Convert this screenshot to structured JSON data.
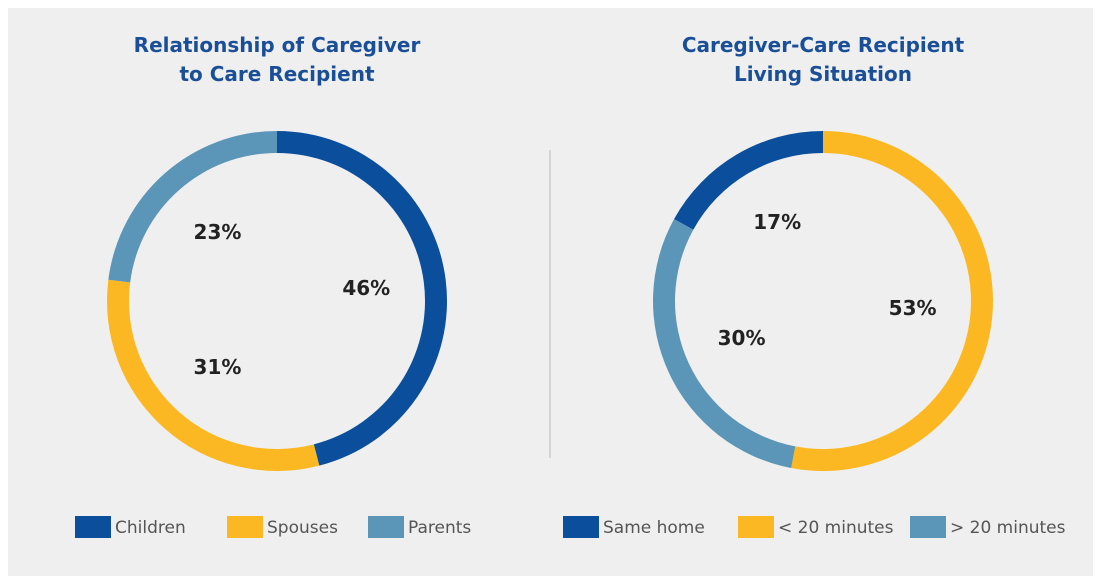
{
  "chart_data": [
    {
      "type": "pie",
      "donut": true,
      "title": [
        "Relationship of Caregiver",
        "to Care Recipient"
      ],
      "categories": [
        "Children",
        "Spouses",
        "Parents"
      ],
      "values": [
        46,
        31,
        23
      ],
      "value_labels": [
        "46%",
        "31%",
        "23%"
      ],
      "colors": [
        "#0b4f9c",
        "#fbb822",
        "#5b96b8"
      ]
    },
    {
      "type": "pie",
      "donut": true,
      "title": [
        "Caregiver-Care Recipient",
        "Living Situation"
      ],
      "categories": [
        "Same home",
        "< 20 minutes",
        "> 20 minutes"
      ],
      "values": [
        17,
        53,
        30
      ],
      "value_labels": [
        "17%",
        "53%",
        "30%"
      ],
      "colors": [
        "#0b4f9c",
        "#fbb822",
        "#5b96b8"
      ]
    }
  ]
}
